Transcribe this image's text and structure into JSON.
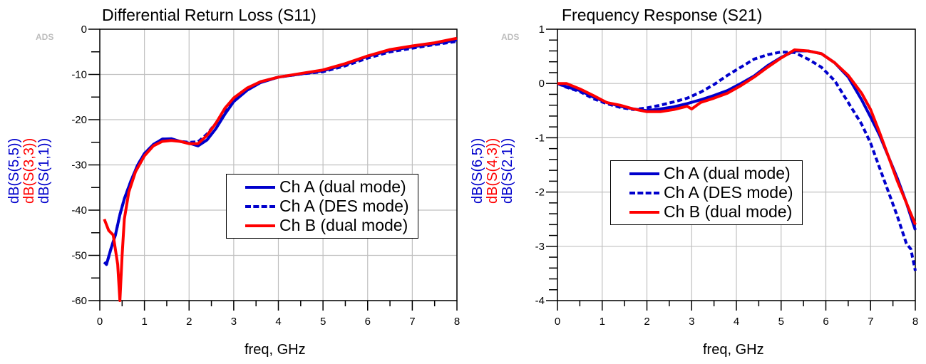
{
  "chart_data": [
    {
      "type": "line",
      "title": "Differential Return Loss (S11)",
      "watermark": "ADS",
      "xlabel": "freq, GHz",
      "ylabel_parts": [
        {
          "text": "dB(S(5,5))",
          "color": "#0000cc"
        },
        {
          "text": "dB(S(3,3))",
          "color": "#ff0000"
        },
        {
          "text": "dB(S(1,1))",
          "color": "#0000cc"
        }
      ],
      "xlim": [
        0,
        8
      ],
      "ylim": [
        -60,
        0
      ],
      "xticks": [
        0,
        1,
        2,
        3,
        4,
        5,
        6,
        7,
        8
      ],
      "yticks": [
        0,
        -10,
        -20,
        -30,
        -40,
        -50,
        -60
      ],
      "grid": true,
      "legend_position": "lower-right",
      "series": [
        {
          "name": "Ch A (dual mode)",
          "color": "#0000cc",
          "style": "solid",
          "x": [
            0.1,
            0.15,
            0.25,
            0.35,
            0.45,
            0.55,
            0.7,
            0.85,
            1.0,
            1.2,
            1.4,
            1.6,
            1.8,
            2.0,
            2.2,
            2.4,
            2.6,
            2.8,
            3.0,
            3.3,
            3.6,
            4.0,
            4.5,
            5.0,
            5.5,
            6.0,
            6.5,
            7.0,
            7.5,
            8.0
          ],
          "y": [
            -51.5,
            -52,
            -48.5,
            -45.5,
            -41,
            -37.5,
            -33.5,
            -30,
            -27.5,
            -25.5,
            -24.3,
            -24.2,
            -24.8,
            -25.2,
            -25.8,
            -24.5,
            -22,
            -18.8,
            -16,
            -13.5,
            -11.8,
            -10.6,
            -9.9,
            -9.2,
            -7.8,
            -6.0,
            -4.7,
            -3.9,
            -3.2,
            -2.4
          ]
        },
        {
          "name": "Ch A (DES mode)",
          "color": "#0000cc",
          "style": "dashed",
          "x": [
            0.1,
            0.15,
            0.25,
            0.35,
            0.45,
            0.55,
            0.7,
            0.85,
            1.0,
            1.2,
            1.4,
            1.6,
            1.8,
            2.0,
            2.2,
            2.4,
            2.6,
            2.8,
            3.0,
            3.3,
            3.6,
            4.0,
            4.5,
            5.0,
            5.5,
            6.0,
            6.5,
            7.0,
            7.5,
            8.0
          ],
          "y": [
            -51.5,
            -52,
            -48.5,
            -45.5,
            -41,
            -37.5,
            -33.5,
            -30,
            -27.5,
            -25.5,
            -24.3,
            -24.3,
            -24.8,
            -25.0,
            -24.9,
            -23.2,
            -20.8,
            -17.8,
            -15.5,
            -13.2,
            -11.6,
            -10.6,
            -9.9,
            -9.4,
            -8.1,
            -6.4,
            -5.0,
            -4.2,
            -3.4,
            -2.7
          ]
        },
        {
          "name": "Ch B (dual mode)",
          "color": "#ff0000",
          "style": "solid",
          "x": [
            0.1,
            0.2,
            0.3,
            0.4,
            0.45,
            0.5,
            0.55,
            0.65,
            0.8,
            1.0,
            1.2,
            1.4,
            1.6,
            1.8,
            2.0,
            2.2,
            2.4,
            2.6,
            2.8,
            3.0,
            3.3,
            3.6,
            4.0,
            4.5,
            5.0,
            5.5,
            6.0,
            6.5,
            7.0,
            7.5,
            8.0
          ],
          "y": [
            -42,
            -44.5,
            -45.5,
            -52,
            -60,
            -50,
            -42,
            -36,
            -31.5,
            -28,
            -25.8,
            -24.8,
            -24.6,
            -24.8,
            -25.3,
            -25.3,
            -23.5,
            -20.8,
            -17.5,
            -15.2,
            -13,
            -11.6,
            -10.6,
            -9.8,
            -9.0,
            -7.6,
            -5.9,
            -4.5,
            -3.7,
            -3.0,
            -2.0
          ]
        }
      ]
    },
    {
      "type": "line",
      "title": "Frequency Response (S21)",
      "watermark": "ADS",
      "xlabel": "freq, GHz",
      "ylabel_parts": [
        {
          "text": "dB(S(6,5))",
          "color": "#0000cc"
        },
        {
          "text": "dB(S(4,3))",
          "color": "#ff0000"
        },
        {
          "text": "dB(S(2,1))",
          "color": "#0000cc"
        }
      ],
      "xlim": [
        0,
        8
      ],
      "ylim": [
        -4,
        1
      ],
      "xticks": [
        0,
        1,
        2,
        3,
        4,
        5,
        6,
        7,
        8
      ],
      "yticks": [
        1,
        0,
        -1,
        -2,
        -3,
        -4
      ],
      "grid": true,
      "legend_position": "center-left",
      "series": [
        {
          "name": "Ch A (dual mode)",
          "color": "#0000cc",
          "style": "solid",
          "x": [
            0.0,
            0.2,
            0.5,
            0.8,
            1.1,
            1.4,
            1.7,
            2.0,
            2.3,
            2.6,
            2.9,
            3.2,
            3.5,
            3.8,
            4.1,
            4.4,
            4.7,
            5.0,
            5.3,
            5.6,
            5.9,
            6.2,
            6.5,
            6.8,
            7.0,
            7.2,
            7.4,
            7.6,
            7.8,
            8.0
          ],
          "y": [
            0.0,
            -0.06,
            -0.13,
            -0.25,
            -0.35,
            -0.42,
            -0.47,
            -0.5,
            -0.47,
            -0.43,
            -0.37,
            -0.3,
            -0.22,
            -0.13,
            0.0,
            0.14,
            0.33,
            0.48,
            0.6,
            0.6,
            0.55,
            0.38,
            0.12,
            -0.3,
            -0.62,
            -0.95,
            -1.35,
            -1.75,
            -2.2,
            -2.7
          ]
        },
        {
          "name": "Ch A (DES mode)",
          "color": "#0000cc",
          "style": "dashed",
          "x": [
            0.0,
            0.2,
            0.5,
            0.8,
            1.1,
            1.4,
            1.7,
            2.0,
            2.3,
            2.6,
            2.9,
            3.2,
            3.5,
            3.8,
            4.1,
            4.4,
            4.7,
            5.0,
            5.3,
            5.6,
            5.9,
            6.2,
            6.5,
            6.8,
            7.0,
            7.2,
            7.4,
            7.6,
            7.8,
            7.9,
            8.0
          ],
          "y": [
            0.0,
            -0.07,
            -0.15,
            -0.28,
            -0.37,
            -0.44,
            -0.48,
            -0.45,
            -0.4,
            -0.34,
            -0.27,
            -0.16,
            -0.02,
            0.15,
            0.3,
            0.45,
            0.53,
            0.58,
            0.57,
            0.45,
            0.3,
            0.05,
            -0.35,
            -0.75,
            -1.1,
            -1.55,
            -2.0,
            -2.45,
            -2.95,
            -3.05,
            -3.45
          ]
        },
        {
          "name": "Ch B (dual mode)",
          "color": "#ff0000",
          "style": "solid",
          "x": [
            0.0,
            0.2,
            0.5,
            0.8,
            1.1,
            1.4,
            1.7,
            2.0,
            2.3,
            2.6,
            2.9,
            3.0,
            3.2,
            3.5,
            3.8,
            4.1,
            4.4,
            4.7,
            5.0,
            5.3,
            5.6,
            5.9,
            6.2,
            6.5,
            6.8,
            7.0,
            7.2,
            7.4,
            7.6,
            7.8,
            8.0
          ],
          "y": [
            0.0,
            0.0,
            -0.1,
            -0.22,
            -0.35,
            -0.4,
            -0.47,
            -0.52,
            -0.52,
            -0.48,
            -0.42,
            -0.47,
            -0.35,
            -0.27,
            -0.18,
            -0.04,
            0.12,
            0.3,
            0.47,
            0.62,
            0.6,
            0.55,
            0.38,
            0.15,
            -0.18,
            -0.48,
            -0.9,
            -1.35,
            -1.8,
            -2.2,
            -2.6
          ]
        }
      ]
    }
  ]
}
